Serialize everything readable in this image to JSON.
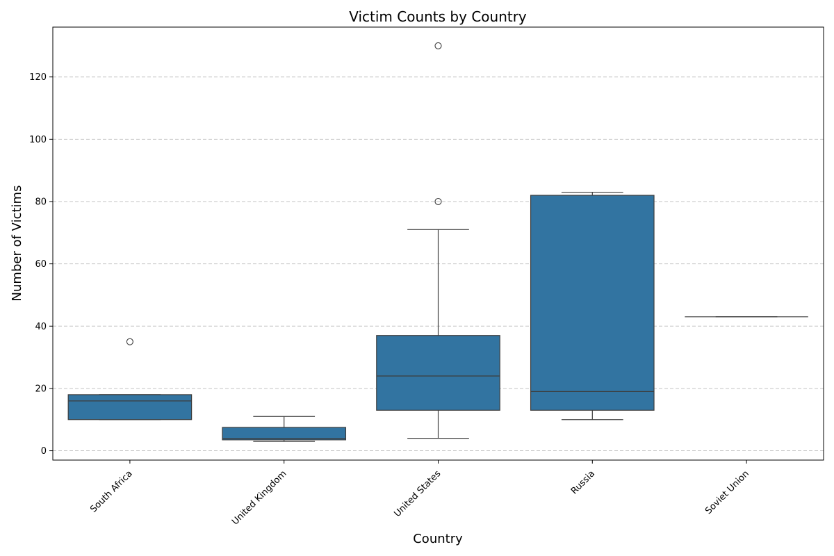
{
  "chart_data": {
    "type": "box",
    "title": "Victim Counts by Country",
    "xlabel": "Country",
    "ylabel": "Number of Victims",
    "ylim": [
      -3,
      136
    ],
    "yticks": [
      0,
      20,
      40,
      60,
      80,
      100,
      120
    ],
    "grid": "y-dashed",
    "color": "#3274a1",
    "categories": [
      "South Africa",
      "United Kingdom",
      "United States",
      "Russia",
      "Soviet Union"
    ],
    "boxes": [
      {
        "category": "South Africa",
        "whisker_low": 10,
        "q1": 10,
        "median": 16,
        "q3": 18,
        "whisker_high": 18,
        "outliers": [
          35
        ]
      },
      {
        "category": "United Kingdom",
        "whisker_low": 3,
        "q1": 3.5,
        "median": 4,
        "q3": 7.5,
        "whisker_high": 11,
        "outliers": []
      },
      {
        "category": "United States",
        "whisker_low": 4,
        "q1": 13,
        "median": 24,
        "q3": 37,
        "whisker_high": 71,
        "outliers": [
          80,
          130
        ]
      },
      {
        "category": "Russia",
        "whisker_low": 10,
        "q1": 13,
        "median": 19,
        "q3": 82,
        "whisker_high": 83,
        "outliers": []
      },
      {
        "category": "Soviet Union",
        "whisker_low": 43,
        "q1": 43,
        "median": 43,
        "q3": 43,
        "whisker_high": 43,
        "outliers": []
      }
    ]
  }
}
